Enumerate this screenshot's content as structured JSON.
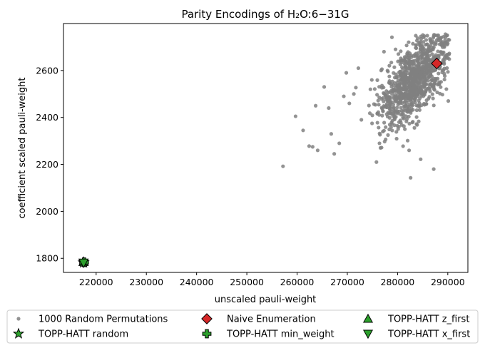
{
  "chart_data": {
    "type": "scatter",
    "title": "Parity Encodings of H₂O:6−31G",
    "xlabel": "unscaled pauli-weight",
    "ylabel": "coefficient scaled pauli-weight",
    "xlim": [
      213500,
      294000
    ],
    "ylim": [
      1740,
      2800
    ],
    "xticks": [
      220000,
      230000,
      240000,
      250000,
      260000,
      270000,
      280000,
      290000
    ],
    "yticks": [
      1800,
      2000,
      2200,
      2400,
      2600
    ],
    "grid": false,
    "legend_position": "bottom",
    "series": [
      {
        "name": "1000 Random Permutations",
        "marker": "circle",
        "color": "#808080",
        "count": 1000,
        "points_sample": [
          [
            257200,
            2192
          ],
          [
            259700,
            2405
          ],
          [
            261200,
            2345
          ],
          [
            262400,
            2278
          ],
          [
            263100,
            2275
          ],
          [
            263700,
            2450
          ],
          [
            264100,
            2260
          ],
          [
            265400,
            2530
          ],
          [
            266300,
            2440
          ],
          [
            266800,
            2330
          ],
          [
            267400,
            2245
          ],
          [
            268400,
            2290
          ],
          [
            269300,
            2490
          ],
          [
            269800,
            2590
          ],
          [
            270400,
            2460
          ],
          [
            271300,
            2500
          ],
          [
            272200,
            2610
          ],
          [
            272800,
            2390
          ],
          [
            274600,
            2520
          ],
          [
            275800,
            2210
          ],
          [
            276400,
            2290
          ],
          [
            277300,
            2680
          ],
          [
            278100,
            2325
          ],
          [
            279600,
            2690
          ],
          [
            282300,
            2260
          ],
          [
            282600,
            2143
          ],
          [
            284600,
            2222
          ],
          [
            285700,
            2730
          ],
          [
            287200,
            2180
          ],
          [
            288100,
            2750
          ],
          [
            289600,
            2720
          ],
          [
            290100,
            2470
          ]
        ]
      },
      {
        "name": "Naive Enumeration",
        "marker": "diamond",
        "color": "#d62728",
        "x": 287800,
        "y": 2630
      },
      {
        "name": "TOPP-HATT z_first",
        "marker": "triangle-up",
        "color": "#2ca02c",
        "x": 217500,
        "y": 1785
      },
      {
        "name": "TOPP-HATT random",
        "marker": "star",
        "color": "#2ca02c",
        "x": 217500,
        "y": 1782
      },
      {
        "name": "TOPP-HATT min_weight",
        "marker": "plus",
        "color": "#2ca02c",
        "x": 217600,
        "y": 1783
      },
      {
        "name": "TOPP-HATT x_first",
        "marker": "triangle-down",
        "color": "#2ca02c",
        "x": 217500,
        "y": 1781
      }
    ]
  }
}
